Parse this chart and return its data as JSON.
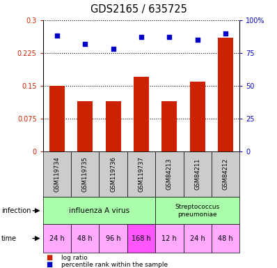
{
  "title": "GDS2165 / 635725",
  "samples": [
    "GSM119734",
    "GSM119735",
    "GSM119736",
    "GSM119737",
    "GSM84213",
    "GSM84211",
    "GSM84212"
  ],
  "log_ratio": [
    0.15,
    0.115,
    0.115,
    0.17,
    0.115,
    0.16,
    0.26
  ],
  "percentile": [
    88,
    82,
    78,
    87,
    87,
    85,
    90
  ],
  "bar_color": "#cc2200",
  "dot_color": "#0000cc",
  "left_yticks": [
    0,
    0.075,
    0.15,
    0.225,
    0.3
  ],
  "left_ylabels": [
    "0",
    "0.075",
    "0.15",
    "0.225",
    "0.3"
  ],
  "right_yticks": [
    0,
    25,
    50,
    75,
    100
  ],
  "right_ylabels": [
    "0",
    "25",
    "50",
    "75",
    "100%"
  ],
  "ylim_left": [
    0,
    0.3
  ],
  "ylim_right": [
    0,
    100
  ],
  "time_labels": [
    "24 h",
    "48 h",
    "96 h",
    "168 h",
    "12 h",
    "24 h",
    "48 h"
  ],
  "time_colors": [
    "#ffaaff",
    "#ffaaff",
    "#ffaaff",
    "#ff55ff",
    "#ffaaff",
    "#ffaaff",
    "#ffaaff"
  ],
  "bg_color": "#ffffff",
  "label_area_color": "#cccccc",
  "infection_color": "#aaffaa"
}
